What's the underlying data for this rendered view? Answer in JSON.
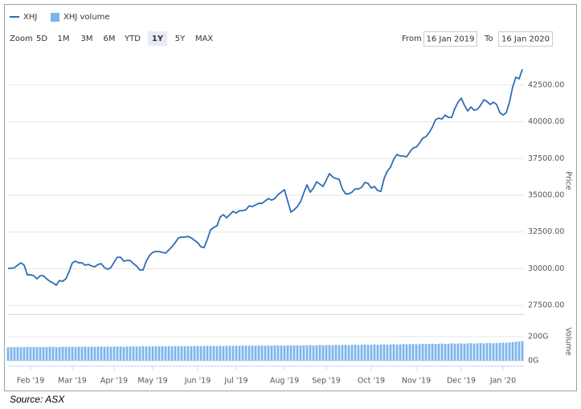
{
  "range_selector": {
    "zoom_label": "Zoom",
    "buttons": [
      "5D",
      "1M",
      "3M",
      "6M",
      "YTD",
      "1Y",
      "5Y",
      "MAX"
    ],
    "selected": 5,
    "from_label": "From",
    "from": "16 Jan 2019",
    "to_label": "To",
    "to": "16 Jan 2020"
  },
  "source": "Source: ASX",
  "chart_data": {
    "type": "line",
    "categories": [
      null,
      null,
      null,
      null,
      null,
      null,
      null,
      "Feb '19",
      null,
      null,
      null,
      null,
      null,
      null,
      null,
      null,
      null,
      null,
      null,
      null,
      "Mar '19",
      null,
      null,
      null,
      null,
      null,
      null,
      null,
      null,
      null,
      null,
      null,
      null,
      "Apr '19",
      null,
      null,
      null,
      null,
      null,
      null,
      null,
      null,
      null,
      null,
      null,
      "May '19",
      null,
      null,
      null,
      null,
      null,
      null,
      null,
      null,
      null,
      null,
      null,
      null,
      null,
      "Jun '19",
      null,
      null,
      null,
      null,
      null,
      null,
      null,
      null,
      null,
      null,
      null,
      "Jul '19",
      null,
      null,
      null,
      null,
      null,
      null,
      null,
      null,
      null,
      null,
      null,
      null,
      null,
      null,
      "Aug '19",
      null,
      null,
      null,
      null,
      null,
      null,
      null,
      null,
      null,
      null,
      null,
      null,
      "Sep '19",
      null,
      null,
      null,
      null,
      null,
      null,
      null,
      null,
      null,
      null,
      null,
      null,
      null,
      "Oct '19",
      null,
      null,
      null,
      null,
      null,
      null,
      null,
      null,
      null,
      null,
      null,
      null,
      null,
      "Nov '19",
      null,
      null,
      null,
      null,
      null,
      null,
      null,
      null,
      null,
      null,
      null,
      null,
      null,
      "Dec '19",
      null,
      null,
      null,
      null,
      null,
      null,
      null,
      null,
      null,
      null,
      null,
      null,
      "Jan '20",
      null,
      null,
      null,
      null,
      null,
      null
    ],
    "series": [
      {
        "name": "XHJ",
        "color": "#2f6db5",
        "values": [
          30020,
          30020,
          30070,
          30240,
          30400,
          30240,
          29580,
          29580,
          29520,
          29310,
          29520,
          29520,
          29310,
          29140,
          29030,
          28870,
          29200,
          29140,
          29310,
          29800,
          30400,
          30510,
          30400,
          30400,
          30240,
          30290,
          30180,
          30130,
          30290,
          30340,
          30070,
          29960,
          30070,
          30450,
          30780,
          30780,
          30510,
          30560,
          30560,
          30340,
          30180,
          29910,
          29910,
          30510,
          30890,
          31110,
          31170,
          31170,
          31110,
          31060,
          31270,
          31490,
          31770,
          32100,
          32150,
          32150,
          32200,
          32100,
          31930,
          31770,
          31490,
          31440,
          31990,
          32640,
          32810,
          32920,
          33520,
          33680,
          33460,
          33680,
          33900,
          33790,
          33950,
          33950,
          34010,
          34280,
          34230,
          34340,
          34450,
          34450,
          34610,
          34780,
          34670,
          34780,
          35050,
          35210,
          35380,
          34610,
          33850,
          34010,
          34230,
          34560,
          35160,
          35710,
          35210,
          35490,
          35920,
          35760,
          35600,
          36030,
          36470,
          36250,
          36140,
          36090,
          35430,
          35100,
          35100,
          35210,
          35430,
          35430,
          35540,
          35870,
          35810,
          35490,
          35600,
          35320,
          35270,
          36140,
          36640,
          36910,
          37460,
          37780,
          37670,
          37670,
          37620,
          37950,
          38220,
          38280,
          38550,
          38880,
          38990,
          39260,
          39640,
          40140,
          40250,
          40190,
          40460,
          40300,
          40300,
          40900,
          41340,
          41610,
          41120,
          40740,
          41010,
          40790,
          40850,
          41120,
          41500,
          41390,
          41180,
          41340,
          41180,
          40630,
          40460,
          40630,
          41340,
          42380,
          43040,
          42930,
          43580
        ]
      },
      {
        "name": "XHJ volume",
        "color": "#7cb5ec",
        "type": "column",
        "axis": "y2",
        "values": [
          112,
          114,
          113,
          115,
          112,
          114,
          116,
          113,
          115,
          114,
          113,
          115,
          114,
          116,
          115,
          113,
          114,
          116,
          115,
          117,
          116,
          114,
          117,
          115,
          118,
          116,
          117,
          115,
          118,
          117,
          116,
          118,
          117,
          119,
          117,
          118,
          116,
          119,
          118,
          120,
          118,
          119,
          121,
          118,
          120,
          119,
          121,
          120,
          122,
          119,
          121,
          120,
          122,
          121,
          123,
          120,
          122,
          121,
          123,
          122,
          121,
          123,
          124,
          122,
          124,
          123,
          125,
          122,
          124,
          125,
          123,
          125,
          124,
          126,
          125,
          124,
          126,
          125,
          127,
          126,
          125,
          127,
          126,
          128,
          126,
          127,
          125,
          128,
          127,
          129,
          128,
          127,
          129,
          128,
          130,
          127,
          129,
          131,
          128,
          130,
          131,
          129,
          132,
          130,
          131,
          133,
          130,
          132,
          134,
          131,
          133,
          135,
          132,
          134,
          136,
          133,
          135,
          137,
          134,
          136,
          138,
          135,
          137,
          139,
          136,
          138,
          140,
          137,
          139,
          141,
          138,
          140,
          142,
          139,
          141,
          143,
          140,
          142,
          144,
          141,
          143,
          145,
          142,
          144,
          146,
          143,
          145,
          147,
          144,
          146,
          148,
          145,
          147,
          149,
          150,
          148,
          152,
          155,
          158,
          160,
          163
        ]
      }
    ],
    "ylabel": "Price",
    "y2label": "Volume",
    "ylim": [
      27230,
      44740
    ],
    "yticks": [
      {
        "value": 27500,
        "label": "27500.00"
      },
      {
        "value": 30000,
        "label": "30000.00"
      },
      {
        "value": 32500,
        "label": "32500.00"
      },
      {
        "value": 35000,
        "label": "35000.00"
      },
      {
        "value": 37500,
        "label": "37500.00"
      },
      {
        "value": 40000,
        "label": "40000.00"
      },
      {
        "value": 42500,
        "label": "42500.00"
      }
    ],
    "y2lim": [
      -40,
      360
    ],
    "y2ticks": [
      {
        "value": 0,
        "label": "0G"
      },
      {
        "value": 200,
        "label": "200G"
      }
    ],
    "grid": true
  }
}
